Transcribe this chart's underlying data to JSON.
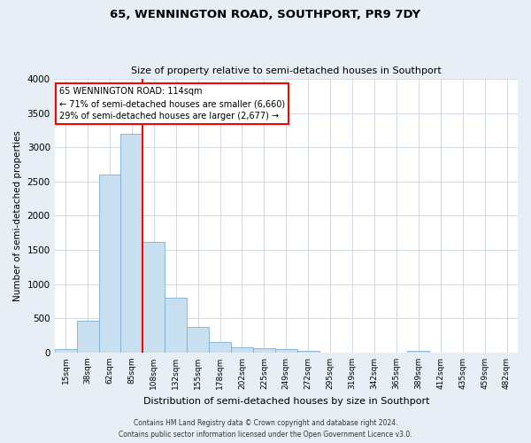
{
  "title": "65, WENNINGTON ROAD, SOUTHPORT, PR9 7DY",
  "subtitle": "Size of property relative to semi-detached houses in Southport",
  "bar_labels": [
    "15sqm",
    "38sqm",
    "62sqm",
    "85sqm",
    "108sqm",
    "132sqm",
    "155sqm",
    "178sqm",
    "202sqm",
    "225sqm",
    "249sqm",
    "272sqm",
    "295sqm",
    "319sqm",
    "342sqm",
    "365sqm",
    "389sqm",
    "412sqm",
    "435sqm",
    "459sqm",
    "482sqm"
  ],
  "bar_values": [
    50,
    460,
    2600,
    3200,
    1620,
    800,
    380,
    155,
    75,
    60,
    55,
    30,
    5,
    0,
    0,
    0,
    30,
    0,
    0,
    0,
    0
  ],
  "bar_color": "#c8dff0",
  "bar_edge_color": "#7aaed6",
  "property_line_color": "red",
  "ylabel": "Number of semi-detached properties",
  "xlabel": "Distribution of semi-detached houses by size in Southport",
  "ylim": [
    0,
    4000
  ],
  "yticks": [
    0,
    500,
    1000,
    1500,
    2000,
    2500,
    3000,
    3500,
    4000
  ],
  "annotation_title": "65 WENNINGTON ROAD: 114sqm",
  "annotation_line1": "← 71% of semi-detached houses are smaller (6,660)",
  "annotation_line2": "29% of semi-detached houses are larger (2,677) →",
  "annotation_box_facecolor": "white",
  "annotation_box_edgecolor": "red",
  "footer_line1": "Contains HM Land Registry data © Crown copyright and database right 2024.",
  "footer_line2": "Contains public sector information licensed under the Open Government Licence v3.0.",
  "background_color": "#e8eef5",
  "plot_background": "white",
  "grid_color": "#c8d4e0"
}
